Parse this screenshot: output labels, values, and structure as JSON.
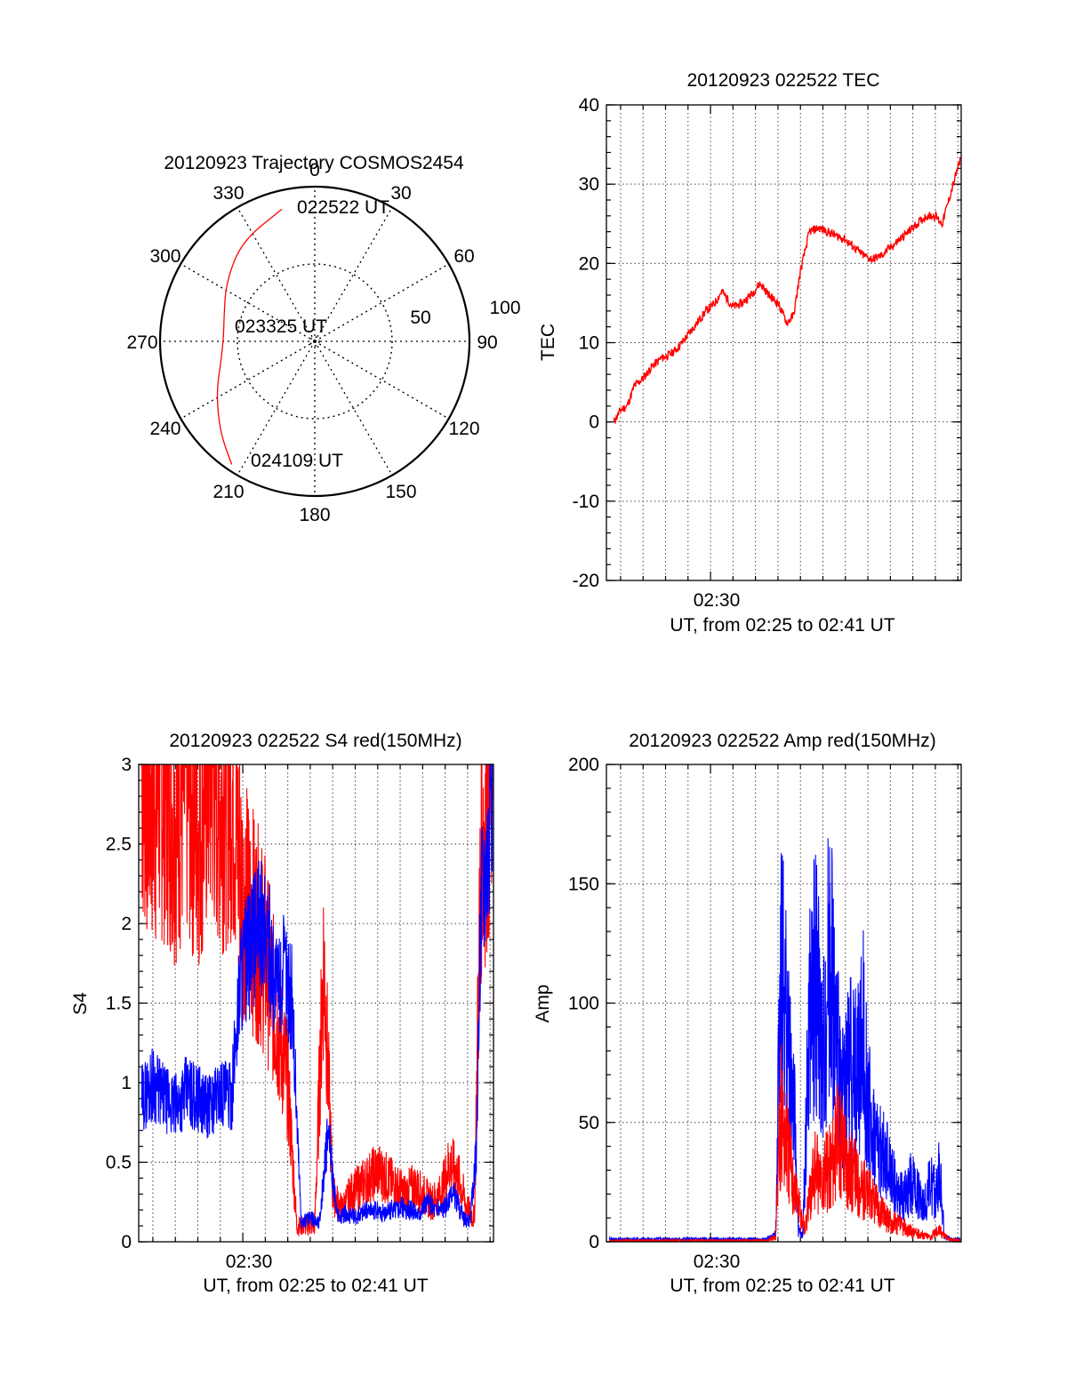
{
  "chart_data": [
    {
      "type": "polar",
      "title": "20120923 Trajectory COSMOS2454",
      "azimuth_labels": [
        "0",
        "30",
        "60",
        "90",
        "120",
        "150",
        "180",
        "210",
        "240",
        "270",
        "300",
        "330"
      ],
      "azimuth_degrees": [
        0,
        30,
        60,
        90,
        120,
        150,
        180,
        210,
        240,
        270,
        300,
        330
      ],
      "radial_labels": [
        "50",
        "100"
      ],
      "rlim": [
        0,
        100
      ],
      "point_labels": [
        "022522 UT",
        "023325 UT",
        "024109 UT"
      ],
      "trajectory": {
        "color": "#ff0000",
        "points": [
          {
            "az": 346,
            "r": 88
          },
          {
            "az": 324,
            "r": 80
          },
          {
            "az": 304,
            "r": 69
          },
          {
            "az": 286,
            "r": 61
          },
          {
            "az": 272,
            "r": 59
          },
          {
            "az": 258,
            "r": 62
          },
          {
            "az": 242,
            "r": 72
          },
          {
            "az": 226,
            "r": 85
          },
          {
            "az": 214,
            "r": 96
          }
        ]
      }
    },
    {
      "type": "line",
      "title": "20120923 022522 TEC",
      "ylabel": "TEC",
      "xlabel": "UT, from 02:25 to 02:41 UT",
      "xlim": [
        25.37,
        41.15
      ],
      "ylim": [
        -20,
        40
      ],
      "yticks": [
        -20,
        -10,
        0,
        10,
        20,
        30,
        40
      ],
      "yticklabels": [
        "-20",
        "-10",
        "0",
        "10",
        "20",
        "30",
        "40"
      ],
      "xtick_value": 30,
      "xticklabel": "02:30",
      "grid": true,
      "series": [
        {
          "color": "#ff0000",
          "x": [
            25.7,
            26.0,
            26.3,
            26.6,
            27.0,
            27.4,
            27.8,
            28.2,
            28.6,
            29.0,
            29.4,
            29.8,
            30.2,
            30.5,
            31.0,
            31.4,
            31.8,
            32.2,
            32.6,
            33.0,
            33.4,
            33.7,
            34.0,
            34.4,
            34.8,
            35.2,
            35.6,
            36.0,
            36.4,
            36.8,
            37.2,
            37.6,
            38.0,
            38.4,
            38.8,
            39.2,
            39.6,
            40.0,
            40.3,
            40.6,
            40.9,
            41.1
          ],
          "y": [
            0,
            1.5,
            2.0,
            4.5,
            5.5,
            7.0,
            8.0,
            8.5,
            9.5,
            11.0,
            12.5,
            14.0,
            15.0,
            16.5,
            14.5,
            15.0,
            16.0,
            17.5,
            16.0,
            15.0,
            12.5,
            13.5,
            19.0,
            24.0,
            24.5,
            24.0,
            23.5,
            23.0,
            22.0,
            21.0,
            20.5,
            21.0,
            22.0,
            23.0,
            24.0,
            25.0,
            26.0,
            26.0,
            25.0,
            28.0,
            31.0,
            33.0
          ]
        }
      ]
    },
    {
      "type": "line",
      "title": "20120923 022522 S4 red(150MHz)",
      "ylabel": "S4",
      "xlabel": "UT, from 02:25 to 02:41 UT",
      "xlim": [
        25.37,
        41.15
      ],
      "ylim": [
        0,
        3
      ],
      "yticks": [
        0,
        0.5,
        1,
        1.5,
        2,
        2.5,
        3
      ],
      "yticklabels": [
        "0",
        "0.5",
        "1",
        "1.5",
        "2",
        "2.5",
        "3"
      ],
      "xtick_value": 30,
      "xticklabel": "02:30",
      "grid": true,
      "series": [
        {
          "color": "#ff0000",
          "x": [
            25.5,
            26.0,
            26.5,
            27.0,
            27.5,
            28.0,
            28.5,
            29.0,
            29.5,
            30.0,
            30.5,
            31.0,
            31.5,
            32.0,
            32.4,
            32.8,
            33.2,
            33.6,
            34.0,
            34.4,
            34.8,
            35.2,
            35.6,
            36.0,
            36.4,
            36.8,
            37.2,
            37.6,
            38.0,
            38.4,
            38.8,
            39.2,
            39.6,
            40.0,
            40.3,
            40.6,
            40.9,
            41.1
          ],
          "y": [
            3.0,
            2.8,
            2.9,
            2.7,
            2.9,
            2.6,
            3.0,
            2.8,
            2.9,
            2.2,
            2.0,
            1.8,
            1.4,
            1.0,
            0.1,
            0.1,
            0.1,
            1.8,
            0.3,
            0.2,
            0.3,
            0.35,
            0.4,
            0.45,
            0.4,
            0.35,
            0.3,
            0.35,
            0.3,
            0.25,
            0.3,
            0.5,
            0.4,
            0.2,
            0.15,
            2.5,
            2.8,
            3.0
          ]
        },
        {
          "color": "#0000ff",
          "x": [
            25.5,
            26.0,
            26.5,
            27.0,
            27.5,
            28.0,
            28.5,
            29.0,
            29.5,
            29.9,
            30.3,
            30.7,
            31.1,
            31.5,
            31.9,
            32.2,
            32.6,
            33.0,
            33.4,
            33.8,
            34.2,
            34.6,
            35.0,
            35.4,
            35.8,
            36.2,
            36.6,
            37.0,
            37.4,
            37.8,
            38.2,
            38.6,
            39.0,
            39.4,
            39.8,
            40.1,
            40.4,
            40.6,
            40.9,
            41.1
          ],
          "y": [
            0.9,
            1.0,
            0.9,
            0.85,
            0.95,
            0.9,
            0.85,
            0.95,
            0.9,
            1.7,
            1.8,
            2.0,
            1.9,
            1.6,
            1.7,
            1.5,
            0.12,
            0.15,
            0.12,
            0.7,
            0.15,
            0.18,
            0.15,
            0.2,
            0.2,
            0.18,
            0.2,
            0.22,
            0.2,
            0.18,
            0.25,
            0.2,
            0.22,
            0.3,
            0.15,
            0.12,
            0.6,
            2.2,
            2.5,
            3.0
          ]
        }
      ]
    },
    {
      "type": "line",
      "title": "20120923 022522 Amp red(150MHz)",
      "ylabel": "Amp",
      "xlabel": "UT, from 02:25 to 02:41 UT",
      "xlim": [
        25.37,
        41.15
      ],
      "ylim": [
        0,
        200
      ],
      "yticks": [
        0,
        50,
        100,
        150,
        200
      ],
      "yticklabels": [
        "0",
        "50",
        "100",
        "150",
        "200"
      ],
      "xtick_value": 30,
      "xticklabel": "02:30",
      "grid": true,
      "series": [
        {
          "color": "#ff0000",
          "x": [
            25.5,
            27.0,
            29.0,
            31.0,
            32.5,
            32.9,
            33.1,
            33.4,
            33.8,
            34.2,
            34.6,
            35.0,
            35.4,
            35.8,
            36.2,
            36.6,
            37.0,
            37.4,
            37.8,
            38.2,
            38.6,
            39.0,
            39.4,
            39.8,
            40.1,
            40.3,
            40.6,
            41.1
          ],
          "y": [
            0.5,
            0.5,
            0.5,
            0.5,
            0.5,
            2,
            55,
            40,
            20,
            5,
            30,
            25,
            35,
            45,
            30,
            25,
            20,
            15,
            10,
            8,
            6,
            4,
            3,
            2,
            5,
            4,
            1,
            0.5
          ]
        },
        {
          "color": "#0000ff",
          "x": [
            25.5,
            27.0,
            29.0,
            31.0,
            32.5,
            32.9,
            33.1,
            33.3,
            33.5,
            33.7,
            33.9,
            34.1,
            34.4,
            34.7,
            35.0,
            35.3,
            35.6,
            35.9,
            36.2,
            36.5,
            36.8,
            37.1,
            37.4,
            37.7,
            38.0,
            38.3,
            38.6,
            38.9,
            39.2,
            39.5,
            39.8,
            40.0,
            40.2,
            40.4,
            40.7,
            41.1
          ],
          "y": [
            1,
            1,
            1,
            1,
            1,
            3,
            120,
            100,
            75,
            60,
            5,
            2,
            90,
            110,
            70,
            125,
            80,
            60,
            75,
            70,
            85,
            50,
            40,
            35,
            30,
            20,
            18,
            25,
            20,
            15,
            25,
            20,
            30,
            2,
            1,
            1
          ]
        }
      ]
    }
  ]
}
